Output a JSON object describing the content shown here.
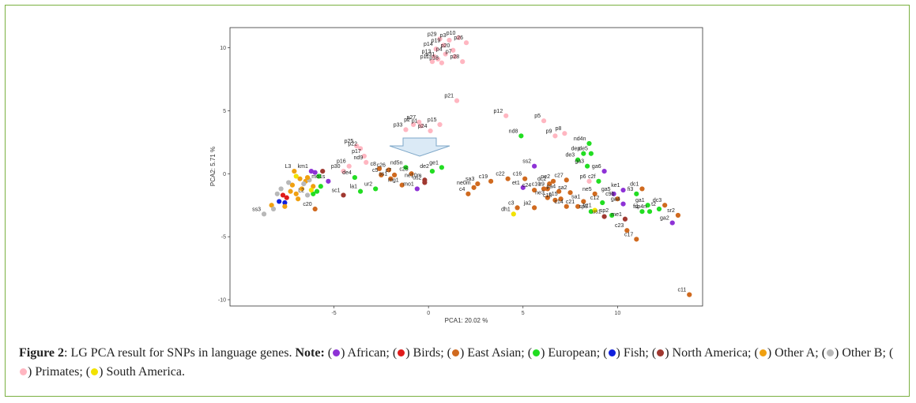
{
  "chart_data": {
    "type": "scatter",
    "title": "",
    "xlabel": "PCA1: 20.02 %",
    "ylabel": "PCA2: 5.71 %",
    "xlim": [
      -10.5,
      14.5
    ],
    "ylim": [
      -10.5,
      11.6
    ],
    "x_ticks": [
      -5,
      0,
      5,
      10
    ],
    "y_ticks": [
      -10,
      -5,
      0,
      5,
      10
    ],
    "grid": false,
    "colors": {
      "african": "#8e32d6",
      "birds": "#e01b1b",
      "east_asian": "#d06a1f",
      "european": "#22dd22",
      "fish": "#1020dd",
      "north_america": "#a03830",
      "other_a": "#f0a010",
      "other_b": "#b8b8b8",
      "primates": "#ffb6c1",
      "south_america": "#f2e200"
    },
    "points": [
      {
        "label": "p29",
        "x": 0.6,
        "y": 10.7,
        "group": "primates"
      },
      {
        "label": "p3",
        "x": 1.1,
        "y": 10.6,
        "group": "primates"
      },
      {
        "label": "p10",
        "x": 1.6,
        "y": 10.8,
        "group": "primates"
      },
      {
        "label": "p26",
        "x": 2.0,
        "y": 10.4,
        "group": "primates"
      },
      {
        "label": "p19",
        "x": 0.8,
        "y": 10.2,
        "group": "primates"
      },
      {
        "label": "p20",
        "x": 1.3,
        "y": 9.8,
        "group": "primates"
      },
      {
        "label": "p14",
        "x": 0.4,
        "y": 9.9,
        "group": "primates"
      },
      {
        "label": "p4",
        "x": 0.9,
        "y": 9.5,
        "group": "primates"
      },
      {
        "label": "p13",
        "x": 0.3,
        "y": 9.3,
        "group": "primates"
      },
      {
        "label": "p31",
        "x": 0.5,
        "y": 9.1,
        "group": "primates"
      },
      {
        "label": "p7",
        "x": 1.4,
        "y": 9.3,
        "group": "primates"
      },
      {
        "label": "p11",
        "x": 0.2,
        "y": 8.9,
        "group": "primates"
      },
      {
        "label": "p18",
        "x": 0.7,
        "y": 8.8,
        "group": "primates"
      },
      {
        "label": "p28",
        "x": 1.8,
        "y": 8.9,
        "group": "primates"
      },
      {
        "label": "p21",
        "x": 1.5,
        "y": 5.8,
        "group": "primates"
      },
      {
        "label": "p2",
        "x": -0.8,
        "y": 3.9,
        "group": "primates"
      },
      {
        "label": "p27",
        "x": -0.5,
        "y": 4.1,
        "group": "primates"
      },
      {
        "label": "p1",
        "x": -0.4,
        "y": 3.8,
        "group": "primates"
      },
      {
        "label": "p15",
        "x": 0.6,
        "y": 3.9,
        "group": "primates"
      },
      {
        "label": "p33",
        "x": -1.2,
        "y": 3.5,
        "group": "primates"
      },
      {
        "label": "p24",
        "x": 0.1,
        "y": 3.4,
        "group": "primates"
      },
      {
        "label": "p12",
        "x": 4.1,
        "y": 4.6,
        "group": "primates"
      },
      {
        "label": "p5",
        "x": 6.1,
        "y": 4.2,
        "group": "primates"
      },
      {
        "label": "p9",
        "x": 6.7,
        "y": 3.0,
        "group": "primates"
      },
      {
        "label": "p8",
        "x": 7.2,
        "y": 3.2,
        "group": "primates"
      },
      {
        "label": "p25",
        "x": -3.8,
        "y": 2.2,
        "group": "primates"
      },
      {
        "label": "p22",
        "x": -3.6,
        "y": 2.0,
        "group": "primates"
      },
      {
        "label": "p17",
        "x": -3.4,
        "y": 1.4,
        "group": "primates"
      },
      {
        "label": "p16",
        "x": -4.2,
        "y": 0.6,
        "group": "primates"
      },
      {
        "label": "p30",
        "x": -4.5,
        "y": 0.2,
        "group": "primates"
      },
      {
        "label": "p6",
        "x": 8.5,
        "y": -0.6,
        "group": "primates"
      },
      {
        "label": "nd8",
        "x": 4.9,
        "y": 3.0,
        "group": "european"
      },
      {
        "label": "nd4n",
        "x": 8.5,
        "y": 2.4,
        "group": "european"
      },
      {
        "label": "de5",
        "x": 8.6,
        "y": 1.6,
        "group": "european"
      },
      {
        "label": "dep",
        "x": 8.2,
        "y": 1.6,
        "group": "european"
      },
      {
        "label": "de3",
        "x": 7.9,
        "y": 1.1,
        "group": "european"
      },
      {
        "label": "ga3",
        "x": 8.4,
        "y": 0.6,
        "group": "european"
      },
      {
        "label": "ga6",
        "x": 9.3,
        "y": 0.2,
        "group": "african"
      },
      {
        "label": "c2f",
        "x": 9.0,
        "y": -0.6,
        "group": "european"
      },
      {
        "label": "nd9",
        "x": -3.3,
        "y": 0.9,
        "group": "primates"
      },
      {
        "label": "c8",
        "x": -2.6,
        "y": 0.4,
        "group": "east_asian"
      },
      {
        "label": "c26",
        "x": -2.1,
        "y": 0.3,
        "group": "east_asian"
      },
      {
        "label": "nd5n",
        "x": -1.2,
        "y": 0.5,
        "group": "european"
      },
      {
        "label": "ge1",
        "x": 0.7,
        "y": 0.5,
        "group": "european"
      },
      {
        "label": "de2",
        "x": 0.2,
        "y": 0.2,
        "group": "european"
      },
      {
        "label": "c25",
        "x": -0.9,
        "y": 0.0,
        "group": "east_asian"
      },
      {
        "label": "c5",
        "x": -2.5,
        "y": -0.1,
        "group": "east_asian"
      },
      {
        "label": "c7",
        "x": -1.8,
        "y": -0.1,
        "group": "east_asian"
      },
      {
        "label": "ss1",
        "x": -2.0,
        "y": -0.4,
        "group": "east_asian"
      },
      {
        "label": "de4",
        "x": -3.9,
        "y": -0.3,
        "group": "european"
      },
      {
        "label": "ne10m",
        "x": -0.2,
        "y": -0.5,
        "group": "north_america"
      },
      {
        "label": "us2",
        "x": -0.2,
        "y": -0.7,
        "group": "north_america"
      },
      {
        "label": "mg1",
        "x": -1.4,
        "y": -0.9,
        "group": "east_asian"
      },
      {
        "label": "mo1",
        "x": -0.6,
        "y": -1.2,
        "group": "african"
      },
      {
        "label": "ur2",
        "x": -2.8,
        "y": -1.2,
        "group": "european"
      },
      {
        "label": "la1",
        "x": -3.6,
        "y": -1.4,
        "group": "european"
      },
      {
        "label": "mo1s",
        "x": -5.3,
        "y": -0.6,
        "group": "african"
      },
      {
        "label": "sc1",
        "x": -4.5,
        "y": -1.7,
        "group": "north_america"
      },
      {
        "label": "km1",
        "x": -6.2,
        "y": 0.2,
        "group": "african"
      },
      {
        "label": "L3",
        "x": -7.1,
        "y": 0.2,
        "group": "other_a"
      },
      {
        "label": "L2",
        "x": -6.4,
        "y": -1.7,
        "group": "other_b"
      },
      {
        "label": "c20",
        "x": -6.0,
        "y": -2.8,
        "group": "east_asian"
      },
      {
        "label": "ss3",
        "x": -8.7,
        "y": -3.2,
        "group": "other_b"
      },
      {
        "label": "ss2",
        "x": 5.6,
        "y": 0.6,
        "group": "african"
      },
      {
        "label": "sa3",
        "x": 2.6,
        "y": -0.8,
        "group": "east_asian"
      },
      {
        "label": "c19",
        "x": 3.3,
        "y": -0.6,
        "group": "east_asian"
      },
      {
        "label": "ne0m",
        "x": 2.4,
        "y": -1.1,
        "group": "east_asian"
      },
      {
        "label": "c4",
        "x": 2.1,
        "y": -1.6,
        "group": "east_asian"
      },
      {
        "label": "c22",
        "x": 4.2,
        "y": -0.4,
        "group": "east_asian"
      },
      {
        "label": "c16",
        "x": 5.1,
        "y": -0.4,
        "group": "east_asian"
      },
      {
        "label": "et1",
        "x": 5.0,
        "y": -1.1,
        "group": "african"
      },
      {
        "label": "c24",
        "x": 5.6,
        "y": -1.3,
        "group": "east_asian"
      },
      {
        "label": "dc2",
        "x": 6.4,
        "y": -0.8,
        "group": "east_asian"
      },
      {
        "label": "ne2",
        "x": 6.6,
        "y": -0.6,
        "group": "east_asian"
      },
      {
        "label": "c27",
        "x": 7.3,
        "y": -0.5,
        "group": "east_asian"
      },
      {
        "label": "c10",
        "x": 6.1,
        "y": -1.2,
        "group": "east_asian"
      },
      {
        "label": "c9",
        "x": 6.3,
        "y": -1.2,
        "group": "east_asian"
      },
      {
        "label": "pa4",
        "x": 6.9,
        "y": -1.4,
        "group": "east_asian"
      },
      {
        "label": "sa2",
        "x": 7.5,
        "y": -1.5,
        "group": "east_asian"
      },
      {
        "label": "ne3",
        "x": 6.3,
        "y": -1.9,
        "group": "east_asian"
      },
      {
        "label": "c15",
        "x": 7.0,
        "y": -2.0,
        "group": "east_asian"
      },
      {
        "label": "c18",
        "x": 6.7,
        "y": -2.1,
        "group": "east_asian"
      },
      {
        "label": "c14",
        "x": 7.3,
        "y": -2.6,
        "group": "east_asian"
      },
      {
        "label": "c21",
        "x": 7.9,
        "y": -2.6,
        "group": "east_asian"
      },
      {
        "label": "ne5",
        "x": 8.8,
        "y": -1.6,
        "group": "east_asian"
      },
      {
        "label": "sa1",
        "x": 8.2,
        "y": -2.2,
        "group": "east_asian"
      },
      {
        "label": "c12",
        "x": 9.2,
        "y": -2.3,
        "group": "european"
      },
      {
        "label": "ga5",
        "x": 9.8,
        "y": -1.6,
        "group": "african"
      },
      {
        "label": "ke1",
        "x": 10.3,
        "y": -1.3,
        "group": "african"
      },
      {
        "label": "c9b",
        "x": 10.0,
        "y": -2.0,
        "group": "east_asian"
      },
      {
        "label": "fi3",
        "x": 11.0,
        "y": -1.6,
        "group": "european"
      },
      {
        "label": "dc1",
        "x": 11.3,
        "y": -1.2,
        "group": "east_asian"
      },
      {
        "label": "ga4",
        "x": 10.3,
        "y": -2.4,
        "group": "african"
      },
      {
        "label": "ga1",
        "x": 11.6,
        "y": -2.5,
        "group": "european"
      },
      {
        "label": "sp3",
        "x": 8.6,
        "y": -3.0,
        "group": "european"
      },
      {
        "label": "sp2",
        "x": 9.7,
        "y": -3.3,
        "group": "european"
      },
      {
        "label": "bz1",
        "x": 8.8,
        "y": -2.9,
        "group": "south_america"
      },
      {
        "label": "us1",
        "x": 9.3,
        "y": -3.4,
        "group": "north_america"
      },
      {
        "label": "fi1",
        "x": 11.3,
        "y": -3.0,
        "group": "european"
      },
      {
        "label": "sp4n",
        "x": 11.7,
        "y": -3.0,
        "group": "european"
      },
      {
        "label": "t2",
        "x": 12.2,
        "y": -2.8,
        "group": "european"
      },
      {
        "label": "dc3",
        "x": 12.5,
        "y": -2.5,
        "group": "east_asian"
      },
      {
        "label": "sr2",
        "x": 13.2,
        "y": -3.3,
        "group": "east_asian"
      },
      {
        "label": "ga2",
        "x": 12.9,
        "y": -3.9,
        "group": "african"
      },
      {
        "label": "me1",
        "x": 10.4,
        "y": -3.6,
        "group": "north_america"
      },
      {
        "label": "c23",
        "x": 10.5,
        "y": -4.5,
        "group": "east_asian"
      },
      {
        "label": "c17",
        "x": 11.0,
        "y": -5.2,
        "group": "east_asian"
      },
      {
        "label": "c3",
        "x": 4.7,
        "y": -2.7,
        "group": "east_asian"
      },
      {
        "label": "ja2",
        "x": 5.6,
        "y": -2.7,
        "group": "east_asian"
      },
      {
        "label": "dh1",
        "x": 4.5,
        "y": -3.2,
        "group": "south_america"
      },
      {
        "label": "c11",
        "x": 13.8,
        "y": -9.6,
        "group": "east_asian"
      },
      {
        "label": "",
        "x": -7.7,
        "y": -1.7,
        "group": "birds"
      },
      {
        "label": "",
        "x": -7.5,
        "y": -1.9,
        "group": "birds"
      },
      {
        "label": "",
        "x": -7.9,
        "y": -2.2,
        "group": "fish"
      },
      {
        "label": "",
        "x": -7.6,
        "y": -2.3,
        "group": "fish"
      },
      {
        "label": "",
        "x": -7.3,
        "y": -1.4,
        "group": "other_a"
      },
      {
        "label": "",
        "x": -7.0,
        "y": -1.6,
        "group": "other_a"
      },
      {
        "label": "",
        "x": -6.7,
        "y": -1.2,
        "group": "other_a"
      },
      {
        "label": "",
        "x": -6.9,
        "y": -2.0,
        "group": "other_a"
      },
      {
        "label": "",
        "x": -7.6,
        "y": -2.6,
        "group": "other_a"
      },
      {
        "label": "",
        "x": -6.5,
        "y": -0.6,
        "group": "other_a"
      },
      {
        "label": "",
        "x": -6.1,
        "y": -1.0,
        "group": "other_a"
      },
      {
        "label": "",
        "x": -6.8,
        "y": -0.4,
        "group": "other_a"
      },
      {
        "label": "",
        "x": -7.2,
        "y": -0.9,
        "group": "other_a"
      },
      {
        "label": "",
        "x": -8.3,
        "y": -2.5,
        "group": "other_a"
      },
      {
        "label": "",
        "x": -8.0,
        "y": -1.6,
        "group": "other_b"
      },
      {
        "label": "",
        "x": -8.2,
        "y": -2.8,
        "group": "other_b"
      },
      {
        "label": "",
        "x": -7.8,
        "y": -1.2,
        "group": "other_b"
      },
      {
        "label": "",
        "x": -6.6,
        "y": -0.8,
        "group": "other_b"
      },
      {
        "label": "",
        "x": -6.3,
        "y": -0.5,
        "group": "other_b"
      },
      {
        "label": "",
        "x": -7.4,
        "y": -0.7,
        "group": "other_b"
      },
      {
        "label": "",
        "x": -5.9,
        "y": -1.4,
        "group": "european"
      },
      {
        "label": "",
        "x": -5.7,
        "y": -1.0,
        "group": "european"
      },
      {
        "label": "",
        "x": -6.1,
        "y": -1.6,
        "group": "european"
      },
      {
        "label": "",
        "x": -5.8,
        "y": -0.2,
        "group": "european"
      },
      {
        "label": "",
        "x": -6.0,
        "y": 0.1,
        "group": "african"
      },
      {
        "label": "",
        "x": -5.6,
        "y": 0.2,
        "group": "north_america"
      },
      {
        "label": "",
        "x": -7.0,
        "y": -0.2,
        "group": "south_america"
      },
      {
        "label": "",
        "x": -6.2,
        "y": -1.3,
        "group": "south_america"
      },
      {
        "label": "",
        "x": -6.4,
        "y": -0.3,
        "group": "other_a"
      }
    ]
  },
  "caption": {
    "figure_label": "Figure 2",
    "text": ": LG PCA result for SNPs in language genes. ",
    "note_label": "Note:",
    "legend": [
      {
        "name": "African",
        "group": "african"
      },
      {
        "name": "Birds",
        "group": "birds"
      },
      {
        "name": "East Asian",
        "group": "east_asian"
      },
      {
        "name": "European",
        "group": "european"
      },
      {
        "name": "Fish",
        "group": "fish"
      },
      {
        "name": "North America",
        "group": "north_america"
      },
      {
        "name": "Other A",
        "group": "other_a"
      },
      {
        "name": "Other B",
        "group": "other_b"
      },
      {
        "name": "Primates",
        "group": "primates"
      },
      {
        "name": "South America",
        "group": "south_america"
      }
    ]
  }
}
